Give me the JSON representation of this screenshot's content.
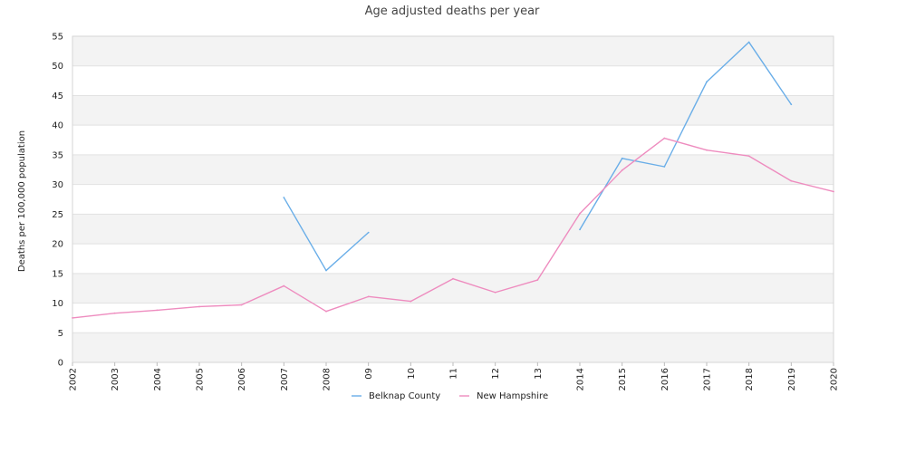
{
  "chart_data": {
    "type": "line",
    "title": "Age adjusted deaths per year",
    "xlabel": "",
    "ylabel": "Deaths per 100,000 population",
    "ylim": [
      0,
      55
    ],
    "yticks": [
      0,
      5,
      10,
      15,
      20,
      25,
      30,
      35,
      40,
      45,
      50,
      55
    ],
    "x": [
      2002,
      2003,
      2004,
      2005,
      2006,
      2007,
      2008,
      2009,
      2010,
      2011,
      2012,
      2013,
      2014,
      2015,
      2016,
      2017,
      2018,
      2019,
      2020
    ],
    "xtick_labels": [
      "2002",
      "2003",
      "2004",
      "2005",
      "2006",
      "2007",
      "2008",
      "09",
      "10",
      "11",
      "12",
      "13",
      "2014",
      "2015",
      "2016",
      "2017",
      "2018",
      "2019",
      "2020"
    ],
    "grid": "horizontal bands",
    "legend_position": "bottom",
    "series": [
      {
        "name": "Belknap County",
        "color": "#6aaee8",
        "values": [
          null,
          null,
          null,
          null,
          null,
          27.8,
          15.5,
          21.9,
          null,
          null,
          null,
          null,
          22.4,
          34.4,
          33.0,
          47.3,
          54.0,
          43.5,
          null
        ]
      },
      {
        "name": "New Hampshire",
        "color": "#ee8cbf",
        "values": [
          7.5,
          8.3,
          8.8,
          9.4,
          9.7,
          12.9,
          8.6,
          11.1,
          10.3,
          14.1,
          11.8,
          13.9,
          25.1,
          32.4,
          37.8,
          35.8,
          34.8,
          30.6,
          28.8
        ]
      }
    ]
  }
}
